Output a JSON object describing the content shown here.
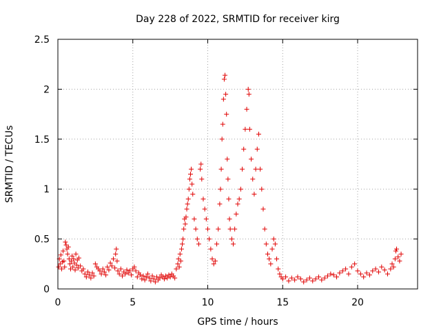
{
  "chart_data": {
    "type": "scatter",
    "title": "Day 228 of 2022, SRMTID for receiver kirg",
    "xlabel": "GPS time / hours",
    "ylabel": "SRMTID / TECUs",
    "xlim": [
      0,
      24
    ],
    "ylim": [
      0,
      2.5
    ],
    "xticks": [
      0,
      5,
      10,
      15,
      20
    ],
    "xtick_labels": [
      "0",
      "5",
      "10",
      "15",
      "20"
    ],
    "yticks": [
      0,
      0.5,
      1,
      1.5,
      2,
      2.5
    ],
    "ytick_labels": [
      "0",
      "0.5",
      "1",
      "1.5",
      "2",
      "2.5"
    ],
    "grid": true,
    "marker": "+",
    "color": "#e00000",
    "series": [
      {
        "name": "SRMTID",
        "points": [
          [
            0.05,
            0.22
          ],
          [
            0.1,
            0.3
          ],
          [
            0.15,
            0.25
          ],
          [
            0.2,
            0.34
          ],
          [
            0.25,
            0.2
          ],
          [
            0.3,
            0.27
          ],
          [
            0.35,
            0.38
          ],
          [
            0.4,
            0.28
          ],
          [
            0.45,
            0.22
          ],
          [
            0.5,
            0.47
          ],
          [
            0.55,
            0.44
          ],
          [
            0.6,
            0.4
          ],
          [
            0.65,
            0.35
          ],
          [
            0.7,
            0.42
          ],
          [
            0.75,
            0.3
          ],
          [
            0.8,
            0.25
          ],
          [
            0.85,
            0.2
          ],
          [
            0.9,
            0.28
          ],
          [
            0.95,
            0.33
          ],
          [
            1.0,
            0.22
          ],
          [
            1.05,
            0.3
          ],
          [
            1.1,
            0.26
          ],
          [
            1.15,
            0.19
          ],
          [
            1.2,
            0.35
          ],
          [
            1.25,
            0.24
          ],
          [
            1.3,
            0.29
          ],
          [
            1.35,
            0.21
          ],
          [
            1.4,
            0.31
          ],
          [
            1.5,
            0.23
          ],
          [
            1.6,
            0.18
          ],
          [
            1.7,
            0.2
          ],
          [
            1.8,
            0.15
          ],
          [
            1.9,
            0.12
          ],
          [
            2.0,
            0.17
          ],
          [
            2.1,
            0.14
          ],
          [
            2.2,
            0.11
          ],
          [
            2.3,
            0.16
          ],
          [
            2.4,
            0.13
          ],
          [
            2.5,
            0.25
          ],
          [
            2.6,
            0.22
          ],
          [
            2.7,
            0.2
          ],
          [
            2.8,
            0.18
          ],
          [
            2.9,
            0.15
          ],
          [
            3.0,
            0.2
          ],
          [
            3.1,
            0.17
          ],
          [
            3.2,
            0.14
          ],
          [
            3.3,
            0.22
          ],
          [
            3.4,
            0.19
          ],
          [
            3.5,
            0.26
          ],
          [
            3.6,
            0.23
          ],
          [
            3.7,
            0.3
          ],
          [
            3.8,
            0.21
          ],
          [
            3.85,
            0.35
          ],
          [
            3.9,
            0.4
          ],
          [
            3.95,
            0.28
          ],
          [
            4.0,
            0.18
          ],
          [
            4.1,
            0.15
          ],
          [
            4.2,
            0.2
          ],
          [
            4.3,
            0.13
          ],
          [
            4.4,
            0.17
          ],
          [
            4.5,
            0.15
          ],
          [
            4.6,
            0.19
          ],
          [
            4.7,
            0.16
          ],
          [
            4.8,
            0.18
          ],
          [
            4.9,
            0.14
          ],
          [
            5.0,
            0.2
          ],
          [
            5.1,
            0.22
          ],
          [
            5.2,
            0.18
          ],
          [
            5.3,
            0.12
          ],
          [
            5.4,
            0.16
          ],
          [
            5.5,
            0.14
          ],
          [
            5.6,
            0.1
          ],
          [
            5.7,
            0.13
          ],
          [
            5.8,
            0.09
          ],
          [
            5.9,
            0.12
          ],
          [
            6.0,
            0.15
          ],
          [
            6.1,
            0.11
          ],
          [
            6.2,
            0.08
          ],
          [
            6.3,
            0.13
          ],
          [
            6.4,
            0.1
          ],
          [
            6.5,
            0.07
          ],
          [
            6.6,
            0.12
          ],
          [
            6.7,
            0.09
          ],
          [
            6.8,
            0.11
          ],
          [
            6.9,
            0.14
          ],
          [
            7.0,
            0.12
          ],
          [
            7.1,
            0.1
          ],
          [
            7.2,
            0.13
          ],
          [
            7.3,
            0.11
          ],
          [
            7.4,
            0.14
          ],
          [
            7.5,
            0.12
          ],
          [
            7.6,
            0.15
          ],
          [
            7.7,
            0.13
          ],
          [
            7.8,
            0.11
          ],
          [
            7.9,
            0.2
          ],
          [
            8.0,
            0.25
          ],
          [
            8.05,
            0.3
          ],
          [
            8.1,
            0.22
          ],
          [
            8.15,
            0.35
          ],
          [
            8.2,
            0.28
          ],
          [
            8.25,
            0.4
          ],
          [
            8.3,
            0.45
          ],
          [
            8.35,
            0.5
          ],
          [
            8.4,
            0.6
          ],
          [
            8.45,
            0.7
          ],
          [
            8.5,
            0.65
          ],
          [
            8.55,
            0.72
          ],
          [
            8.6,
            0.8
          ],
          [
            8.65,
            0.85
          ],
          [
            8.7,
            0.9
          ],
          [
            8.75,
            1.0
          ],
          [
            8.8,
            1.1
          ],
          [
            8.85,
            1.15
          ],
          [
            8.9,
            1.2
          ],
          [
            8.95,
            1.05
          ],
          [
            9.0,
            0.95
          ],
          [
            9.1,
            0.7
          ],
          [
            9.2,
            0.6
          ],
          [
            9.3,
            0.5
          ],
          [
            9.4,
            0.45
          ],
          [
            9.5,
            1.2
          ],
          [
            9.55,
            1.25
          ],
          [
            9.6,
            1.1
          ],
          [
            9.7,
            0.9
          ],
          [
            9.8,
            0.8
          ],
          [
            9.9,
            0.7
          ],
          [
            10.0,
            0.6
          ],
          [
            10.1,
            0.5
          ],
          [
            10.2,
            0.4
          ],
          [
            10.3,
            0.3
          ],
          [
            10.4,
            0.25
          ],
          [
            10.5,
            0.28
          ],
          [
            10.6,
            0.45
          ],
          [
            10.7,
            0.6
          ],
          [
            10.8,
            0.85
          ],
          [
            10.85,
            1.0
          ],
          [
            10.9,
            1.2
          ],
          [
            10.95,
            1.5
          ],
          [
            11.0,
            1.65
          ],
          [
            11.05,
            1.9
          ],
          [
            11.1,
            2.1
          ],
          [
            11.15,
            2.14
          ],
          [
            11.2,
            1.95
          ],
          [
            11.25,
            1.75
          ],
          [
            11.3,
            1.3
          ],
          [
            11.35,
            1.1
          ],
          [
            11.4,
            0.9
          ],
          [
            11.45,
            0.7
          ],
          [
            11.5,
            0.6
          ],
          [
            11.6,
            0.5
          ],
          [
            11.7,
            0.45
          ],
          [
            11.8,
            0.6
          ],
          [
            11.9,
            0.75
          ],
          [
            12.0,
            0.85
          ],
          [
            12.1,
            0.9
          ],
          [
            12.2,
            1.0
          ],
          [
            12.3,
            1.2
          ],
          [
            12.4,
            1.4
          ],
          [
            12.5,
            1.6
          ],
          [
            12.6,
            1.8
          ],
          [
            12.7,
            2.0
          ],
          [
            12.75,
            1.95
          ],
          [
            12.8,
            1.6
          ],
          [
            12.9,
            1.3
          ],
          [
            13.0,
            1.1
          ],
          [
            13.1,
            0.95
          ],
          [
            13.2,
            1.2
          ],
          [
            13.3,
            1.4
          ],
          [
            13.4,
            1.55
          ],
          [
            13.5,
            1.2
          ],
          [
            13.6,
            1.0
          ],
          [
            13.7,
            0.8
          ],
          [
            13.8,
            0.6
          ],
          [
            13.9,
            0.45
          ],
          [
            14.0,
            0.35
          ],
          [
            14.1,
            0.3
          ],
          [
            14.2,
            0.25
          ],
          [
            14.3,
            0.4
          ],
          [
            14.4,
            0.5
          ],
          [
            14.5,
            0.45
          ],
          [
            14.6,
            0.3
          ],
          [
            14.7,
            0.2
          ],
          [
            14.8,
            0.15
          ],
          [
            14.9,
            0.12
          ],
          [
            15.0,
            0.1
          ],
          [
            15.2,
            0.12
          ],
          [
            15.4,
            0.08
          ],
          [
            15.6,
            0.11
          ],
          [
            15.8,
            0.09
          ],
          [
            16.0,
            0.12
          ],
          [
            16.2,
            0.1
          ],
          [
            16.4,
            0.07
          ],
          [
            16.6,
            0.09
          ],
          [
            16.8,
            0.11
          ],
          [
            17.0,
            0.08
          ],
          [
            17.2,
            0.1
          ],
          [
            17.4,
            0.12
          ],
          [
            17.6,
            0.09
          ],
          [
            17.8,
            0.11
          ],
          [
            18.0,
            0.13
          ],
          [
            18.2,
            0.15
          ],
          [
            18.4,
            0.14
          ],
          [
            18.6,
            0.12
          ],
          [
            18.8,
            0.16
          ],
          [
            19.0,
            0.18
          ],
          [
            19.2,
            0.2
          ],
          [
            19.4,
            0.15
          ],
          [
            19.6,
            0.22
          ],
          [
            19.8,
            0.25
          ],
          [
            20.0,
            0.18
          ],
          [
            20.2,
            0.15
          ],
          [
            20.4,
            0.12
          ],
          [
            20.6,
            0.16
          ],
          [
            20.8,
            0.14
          ],
          [
            21.0,
            0.18
          ],
          [
            21.2,
            0.2
          ],
          [
            21.4,
            0.17
          ],
          [
            21.6,
            0.22
          ],
          [
            21.8,
            0.19
          ],
          [
            22.0,
            0.15
          ],
          [
            22.2,
            0.2
          ],
          [
            22.3,
            0.25
          ],
          [
            22.4,
            0.22
          ],
          [
            22.5,
            0.3
          ],
          [
            22.55,
            0.38
          ],
          [
            22.6,
            0.4
          ],
          [
            22.7,
            0.32
          ],
          [
            22.8,
            0.28
          ],
          [
            22.9,
            0.35
          ]
        ]
      }
    ]
  }
}
